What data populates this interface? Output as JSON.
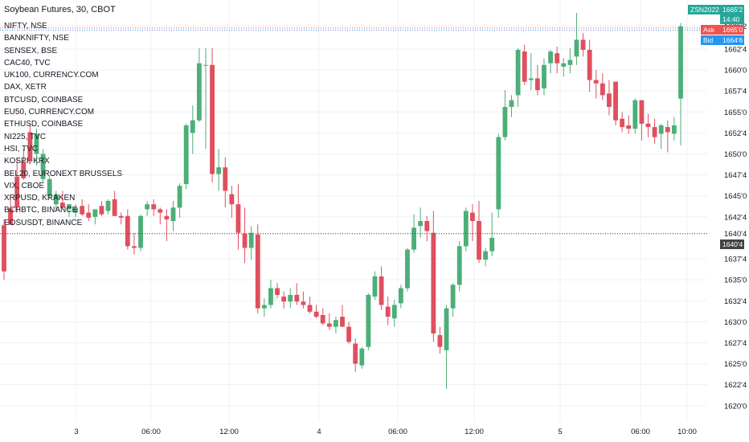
{
  "title": "Soybean Futures, 30, CBOT",
  "symbols": [
    "NIFTY, NSE",
    "BANKNIFTY, NSE",
    "SENSEX, BSE",
    "CAC40, TVC",
    "UK100, CURRENCY.COM",
    "DAX, XETR",
    "BTCUSD, COINBASE",
    "EU50, CURRENCY.COM",
    "ETHUSD, COINBASE",
    "NI225, TVC",
    "HSI, TVC",
    "KOSPI, KRX",
    "BEL20, EURONEXT BRUSSELS",
    "VIX, CBOE",
    "XRPUSD, KRAKEN",
    "BCHBTC, BINANCE",
    "EOSUSDT, BINANCE"
  ],
  "badges": {
    "symbol_code": "ZSN2022",
    "last_price": "1665'2",
    "countdown": "14:40",
    "ask_label": "Ask",
    "ask_price": "1665'0",
    "bid_label": "Bid",
    "bid_price": "1664'6",
    "marker_price": "1640'4"
  },
  "colors": {
    "up": "#4caf78",
    "down": "#e04f5f",
    "ask": "#ef5350",
    "bid": "#2196f3",
    "last": "#26a69a",
    "marker": "#444444"
  },
  "chart_data": {
    "type": "candlestick",
    "y_ticks": [
      "1665'2",
      "1662'4",
      "1660'0",
      "1657'4",
      "1655'0",
      "1652'4",
      "1650'0",
      "1647'4",
      "1645'0",
      "1642'4",
      "1640'4",
      "1637'4",
      "1635'0",
      "1632'4",
      "1630'0",
      "1627'4",
      "1625'0",
      "1622'4",
      "1620'0"
    ],
    "x_ticks": [
      "3",
      "06:00",
      "12:00",
      "4",
      "06:00",
      "12:00",
      "5",
      "06:00",
      "10:00"
    ],
    "ylim": [
      1619.5,
      1667.0
    ],
    "candles": [
      [
        1641.5,
        1642.2,
        1635.0,
        1636.0
      ],
      [
        1643.5,
        1644.6,
        1641.5,
        1641.6
      ],
      [
        1647.3,
        1649.6,
        1643.0,
        1643.6
      ],
      [
        1649.1,
        1650.6,
        1646.9,
        1647.1
      ],
      [
        1652.6,
        1653.6,
        1648.8,
        1649.1
      ],
      [
        1650.0,
        1653.0,
        1648.6,
        1652.4
      ],
      [
        1647.0,
        1650.6,
        1646.6,
        1650.0
      ],
      [
        1645.0,
        1647.4,
        1644.6,
        1647.0
      ],
      [
        1644.0,
        1645.6,
        1643.4,
        1645.2
      ],
      [
        1644.2,
        1645.6,
        1643.4,
        1643.6
      ],
      [
        1643.4,
        1644.0,
        1642.5,
        1644.0
      ],
      [
        1643.0,
        1644.0,
        1642.5,
        1643.6
      ],
      [
        1643.8,
        1644.6,
        1642.6,
        1642.8
      ],
      [
        1643.0,
        1644.0,
        1642.0,
        1642.4
      ],
      [
        1642.5,
        1643.4,
        1641.6,
        1643.4
      ],
      [
        1643.8,
        1644.4,
        1642.6,
        1642.8
      ],
      [
        1643.2,
        1644.6,
        1642.8,
        1644.4
      ],
      [
        1644.6,
        1645.6,
        1642.6,
        1642.6
      ],
      [
        1642.6,
        1643.0,
        1641.6,
        1642.4
      ],
      [
        1642.6,
        1643.4,
        1638.6,
        1639.0
      ],
      [
        1639.0,
        1640.6,
        1638.0,
        1638.8
      ],
      [
        1638.8,
        1642.8,
        1638.4,
        1642.6
      ],
      [
        1643.4,
        1644.4,
        1642.6,
        1644.0
      ],
      [
        1644.0,
        1644.6,
        1642.6,
        1643.4
      ],
      [
        1643.4,
        1643.6,
        1641.6,
        1643.0
      ],
      [
        1642.6,
        1643.4,
        1639.6,
        1642.2
      ],
      [
        1642.0,
        1644.4,
        1640.8,
        1643.6
      ],
      [
        1643.6,
        1646.5,
        1642.4,
        1646.2
      ],
      [
        1646.4,
        1653.6,
        1645.8,
        1653.4
      ],
      [
        1652.5,
        1655.8,
        1650.0,
        1654.0
      ],
      [
        1654.0,
        1662.6,
        1653.8,
        1660.8
      ],
      [
        1660.6,
        1662.6,
        1650.6,
        1660.6
      ],
      [
        1660.6,
        1662.6,
        1646.6,
        1647.6
      ],
      [
        1647.6,
        1650.6,
        1645.6,
        1648.4
      ],
      [
        1648.4,
        1649.6,
        1643.6,
        1645.6
      ],
      [
        1645.2,
        1646.2,
        1642.4,
        1644.0
      ],
      [
        1644.0,
        1646.4,
        1638.6,
        1640.6
      ],
      [
        1640.5,
        1643.6,
        1637.0,
        1638.8
      ],
      [
        1638.8,
        1641.4,
        1637.4,
        1640.6
      ],
      [
        1640.4,
        1641.6,
        1631.0,
        1631.6
      ],
      [
        1631.6,
        1632.8,
        1630.6,
        1632.0
      ],
      [
        1632.0,
        1635.0,
        1631.6,
        1634.0
      ],
      [
        1634.0,
        1634.6,
        1632.8,
        1633.2
      ],
      [
        1633.0,
        1633.6,
        1631.6,
        1632.4
      ],
      [
        1632.4,
        1634.0,
        1631.6,
        1633.2
      ],
      [
        1633.2,
        1634.6,
        1632.0,
        1632.4
      ],
      [
        1632.4,
        1633.6,
        1631.6,
        1632.0
      ],
      [
        1632.0,
        1633.0,
        1631.0,
        1631.2
      ],
      [
        1631.2,
        1632.0,
        1630.4,
        1630.6
      ],
      [
        1630.8,
        1631.6,
        1629.6,
        1629.8
      ],
      [
        1629.8,
        1631.0,
        1629.0,
        1629.4
      ],
      [
        1629.4,
        1630.6,
        1628.6,
        1630.2
      ],
      [
        1630.6,
        1632.0,
        1629.4,
        1629.4
      ],
      [
        1629.4,
        1630.0,
        1627.4,
        1627.6
      ],
      [
        1627.4,
        1628.0,
        1624.0,
        1625.0
      ],
      [
        1624.8,
        1627.0,
        1624.4,
        1626.8
      ],
      [
        1627.0,
        1633.4,
        1626.6,
        1633.2
      ],
      [
        1633.0,
        1636.0,
        1632.6,
        1635.4
      ],
      [
        1635.4,
        1636.6,
        1631.4,
        1632.0
      ],
      [
        1631.8,
        1633.0,
        1629.6,
        1630.6
      ],
      [
        1630.4,
        1632.6,
        1629.4,
        1632.0
      ],
      [
        1632.2,
        1634.4,
        1631.6,
        1634.0
      ],
      [
        1634.0,
        1638.8,
        1633.6,
        1638.6
      ],
      [
        1638.6,
        1642.8,
        1638.2,
        1641.2
      ],
      [
        1641.4,
        1643.6,
        1640.0,
        1642.0
      ],
      [
        1642.0,
        1642.6,
        1639.6,
        1640.8
      ],
      [
        1640.6,
        1643.2,
        1627.6,
        1628.6
      ],
      [
        1628.4,
        1629.4,
        1626.2,
        1627.0
      ],
      [
        1626.6,
        1632.0,
        1622.0,
        1631.6
      ],
      [
        1631.6,
        1634.6,
        1630.6,
        1634.4
      ],
      [
        1634.4,
        1639.6,
        1633.6,
        1639.0
      ],
      [
        1639.0,
        1643.6,
        1638.4,
        1643.2
      ],
      [
        1643.0,
        1644.0,
        1639.6,
        1642.0
      ],
      [
        1642.0,
        1644.4,
        1637.0,
        1637.4
      ],
      [
        1637.4,
        1638.8,
        1636.6,
        1638.4
      ],
      [
        1638.4,
        1643.0,
        1637.8,
        1640.0
      ],
      [
        1643.4,
        1652.4,
        1642.4,
        1652.0
      ],
      [
        1652.0,
        1657.6,
        1651.6,
        1655.6
      ],
      [
        1655.6,
        1657.0,
        1654.4,
        1656.4
      ],
      [
        1657.0,
        1662.6,
        1655.6,
        1662.4
      ],
      [
        1662.2,
        1663.0,
        1658.2,
        1658.6
      ],
      [
        1658.8,
        1662.0,
        1657.6,
        1659.0
      ],
      [
        1659.0,
        1660.6,
        1657.0,
        1657.6
      ],
      [
        1657.8,
        1661.4,
        1657.0,
        1660.6
      ],
      [
        1660.8,
        1662.4,
        1659.6,
        1662.2
      ],
      [
        1662.0,
        1662.8,
        1659.6,
        1660.8
      ],
      [
        1660.4,
        1661.4,
        1659.2,
        1660.8
      ],
      [
        1660.6,
        1662.6,
        1659.6,
        1661.2
      ],
      [
        1661.6,
        1666.8,
        1660.6,
        1663.6
      ],
      [
        1663.6,
        1664.4,
        1661.6,
        1662.4
      ],
      [
        1662.4,
        1663.6,
        1657.4,
        1658.8
      ],
      [
        1658.8,
        1660.0,
        1656.6,
        1658.4
      ],
      [
        1658.4,
        1659.6,
        1656.4,
        1657.0
      ],
      [
        1657.2,
        1658.8,
        1654.6,
        1655.6
      ],
      [
        1658.6,
        1658.6,
        1653.4,
        1654.0
      ],
      [
        1654.2,
        1655.0,
        1652.6,
        1653.2
      ],
      [
        1653.4,
        1654.6,
        1652.4,
        1653.0
      ],
      [
        1653.0,
        1656.6,
        1652.4,
        1656.4
      ],
      [
        1656.4,
        1656.4,
        1651.6,
        1653.6
      ],
      [
        1653.6,
        1654.8,
        1652.0,
        1653.2
      ],
      [
        1653.2,
        1654.2,
        1651.2,
        1652.0
      ],
      [
        1652.4,
        1653.6,
        1650.6,
        1653.4
      ],
      [
        1653.2,
        1654.0,
        1650.2,
        1652.6
      ],
      [
        1652.4,
        1654.4,
        1651.6,
        1653.4
      ],
      [
        1656.6,
        1665.6,
        1651.0,
        1665.2
      ]
    ]
  }
}
